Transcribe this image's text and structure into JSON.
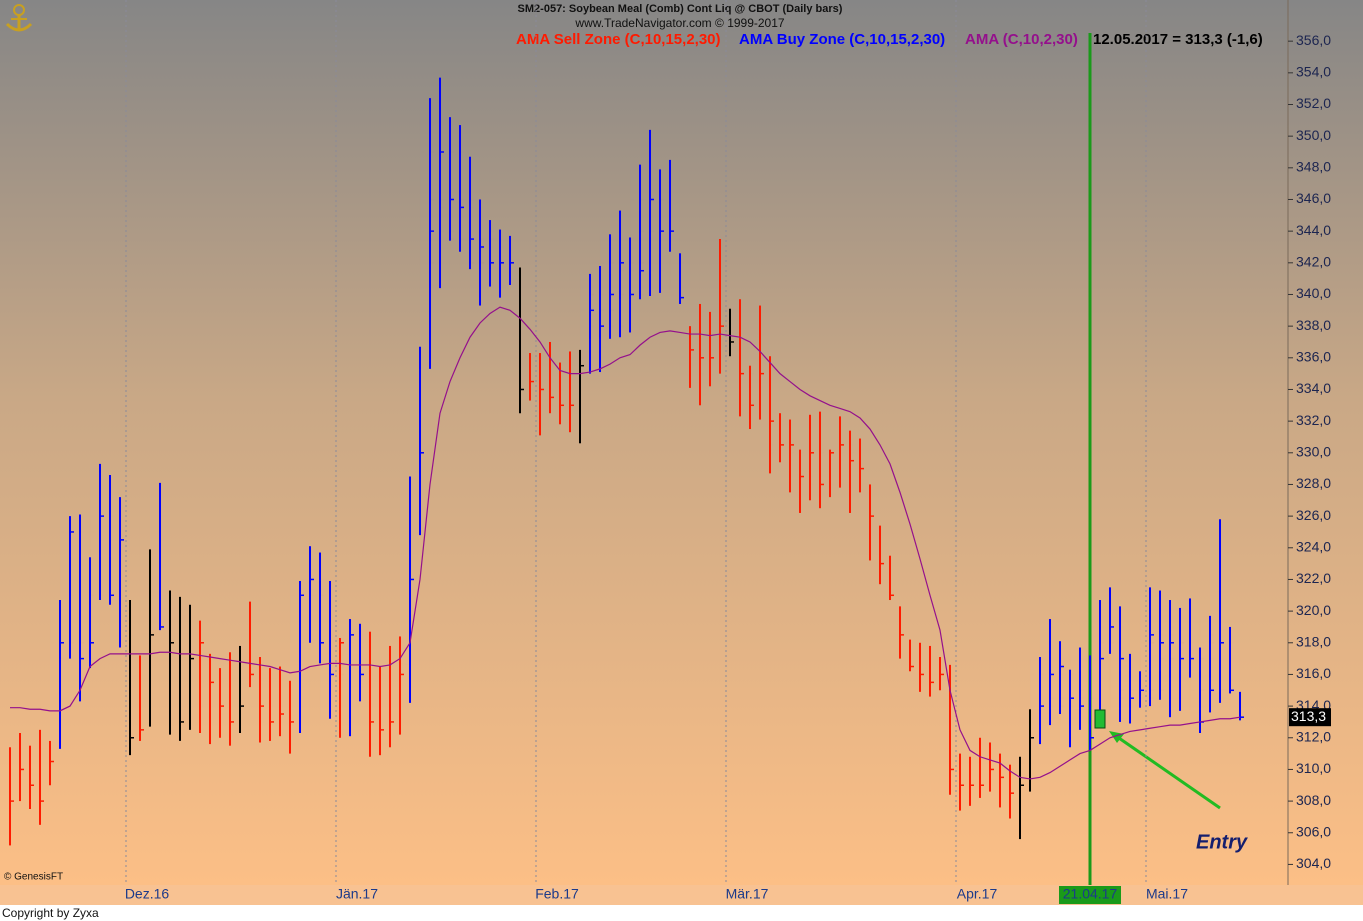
{
  "chart_data": {
    "type": "ohlc",
    "title": "SM2-057:  Soybean Meal (Comb) Cont Liq @ CBOT  (Daily bars)",
    "subtitle": "www.TradeNavigator.com © 1999-2017",
    "status": "12.05.2017 = 313,3 (-1,6)",
    "last_label": "313,3",
    "annotation": "Entry",
    "source_note": "© GenesisFT",
    "copyright": "Copyright by Zyxa",
    "series": [
      {
        "name": "AMA Sell Zone (C,10,15,2,30)",
        "color": "#ff1a00"
      },
      {
        "name": "AMA Buy Zone (C,10,15,2,30)",
        "color": "#0000ff"
      },
      {
        "name": "AMA (C,10,2,30)",
        "color": "#94108c",
        "values": [
          313.9,
          313.9,
          313.8,
          313.8,
          313.7,
          313.7,
          314,
          315,
          316.5,
          317,
          317.3,
          317.3,
          317.3,
          317.3,
          317.3,
          317.4,
          317.4,
          317.3,
          317.3,
          317.2,
          317.1,
          317,
          316.9,
          316.8,
          316.7,
          316.6,
          316.5,
          316.3,
          316.1,
          316.2,
          316.5,
          316.6,
          316.7,
          316.7,
          316.6,
          316.6,
          316.6,
          316.5,
          316.6,
          317,
          318,
          322,
          328,
          332.5,
          334.5,
          336,
          337.3,
          338.2,
          338.8,
          339.2,
          339,
          338.5,
          337.8,
          337,
          336,
          335.2,
          335,
          335,
          335.1,
          335.3,
          335.6,
          336,
          336.2,
          336.8,
          337.3,
          337.6,
          337.7,
          337.6,
          337.5,
          337.5,
          337.4,
          337.5,
          337.4,
          337.3,
          337,
          336.4,
          335.7,
          335,
          334.5,
          334,
          333.6,
          333.3,
          333,
          332.8,
          332.6,
          332.2,
          331.5,
          330.5,
          329.3,
          327.5,
          325.5,
          323.3,
          321,
          318.8,
          315,
          312.5,
          311.2,
          310.8,
          310.6,
          310.4,
          309.9,
          309.5,
          309.4,
          309.5,
          309.8,
          310.2,
          310.6,
          311,
          311.2,
          311.6,
          312,
          312.2,
          312.4,
          312.5,
          312.6,
          312.7,
          312.8,
          312.8,
          312.9,
          313,
          313.1,
          313.2,
          313.2,
          313.3
        ]
      }
    ],
    "categories": [
      null,
      null,
      null,
      null,
      null,
      null,
      null,
      null,
      null,
      null,
      null,
      null,
      "Dez.16",
      null,
      null,
      null,
      null,
      null,
      null,
      null,
      null,
      null,
      null,
      null,
      null,
      null,
      null,
      null,
      null,
      null,
      null,
      null,
      null,
      "Jän.17",
      null,
      null,
      null,
      null,
      null,
      null,
      null,
      null,
      null,
      null,
      null,
      null,
      null,
      null,
      null,
      null,
      null,
      null,
      null,
      "Feb.17",
      null,
      null,
      null,
      null,
      null,
      null,
      null,
      null,
      null,
      null,
      null,
      null,
      null,
      null,
      null,
      null,
      null,
      null,
      "Mär.17",
      null,
      null,
      null,
      null,
      null,
      null,
      null,
      null,
      null,
      null,
      null,
      null,
      null,
      null,
      null,
      null,
      null,
      null,
      null,
      null,
      null,
      null,
      "Apr.17",
      null,
      null,
      null,
      null,
      null,
      null,
      null,
      null,
      null,
      null,
      null,
      null,
      "21.04.17",
      null,
      null,
      null,
      null,
      null,
      "Mai.17",
      null,
      null,
      null,
      null,
      null,
      null,
      null,
      null,
      null
    ],
    "bars": {
      "high": [
        311.4,
        312.3,
        311.5,
        312.5,
        311.8,
        320.7,
        326,
        326.1,
        323.4,
        329.3,
        328.6,
        327.2,
        320.7,
        317.2,
        323.9,
        328.1,
        321.3,
        320.9,
        320.4,
        319.4,
        317.3,
        316.4,
        317.4,
        317.8,
        320.6,
        317.1,
        316.4,
        316.5,
        315.6,
        321.9,
        324.1,
        323.7,
        321.9,
        318.3,
        319.5,
        319.2,
        318.7,
        316.5,
        317.8,
        318.4,
        328.5,
        336.7,
        352.4,
        353.7,
        351.2,
        350.7,
        348.7,
        346,
        344.7,
        344.1,
        343.7,
        341.7,
        336.3,
        336.3,
        337,
        335.7,
        336.4,
        336.5,
        341.3,
        341.8,
        343.8,
        345.3,
        343.6,
        348.2,
        350.4,
        347.9,
        348.5,
        342.6,
        338,
        339.4,
        338.9,
        343.5,
        339.1,
        339.7,
        335.5,
        339.3,
        336.1,
        332.5,
        332.1,
        330.2,
        332.4,
        332.6,
        330.2,
        332.3,
        331.4,
        330.9,
        328,
        325.4,
        323.5,
        320.3,
        318.2,
        318,
        317.8,
        317.1,
        316.6,
        311,
        310.8,
        312,
        311.7,
        311,
        310.3,
        310.8,
        313.8,
        317.1,
        319.5,
        318.1,
        316.3,
        317.7,
        317.2,
        320.7,
        321.5,
        320.3,
        317.3,
        316.2,
        321.5,
        321.3,
        320.7,
        320.2,
        320.8,
        317.7,
        319.7,
        325.8,
        319,
        314.9
      ],
      "low": [
        305.2,
        308,
        307.5,
        306.5,
        309,
        311.3,
        317,
        314.3,
        316.4,
        320.7,
        320.4,
        317.7,
        310.9,
        311.8,
        312.7,
        318.8,
        312.2,
        311.8,
        312.5,
        312.3,
        311.6,
        312,
        311.5,
        312.3,
        315.2,
        311.7,
        311.8,
        312.1,
        311,
        312.3,
        318,
        316.7,
        313.2,
        312,
        312.1,
        314.3,
        310.8,
        310.9,
        311.4,
        312.2,
        314.2,
        324.8,
        335.3,
        340.4,
        343.4,
        342.7,
        341.6,
        339.3,
        340.5,
        339.8,
        340.6,
        332.5,
        333.3,
        331.1,
        332.5,
        331.8,
        331.3,
        330.6,
        335,
        335.1,
        337.2,
        337.3,
        337.6,
        339.7,
        339.9,
        340.1,
        342.7,
        339.4,
        334.1,
        333,
        334.2,
        335,
        336.1,
        332.3,
        331.5,
        332.1,
        328.7,
        329.4,
        327.5,
        326.2,
        327,
        326.5,
        327.2,
        327.8,
        326.2,
        327.5,
        323.2,
        321.7,
        320.7,
        317,
        316.2,
        314.9,
        314.6,
        315,
        308.4,
        307.4,
        307.7,
        308.2,
        308.6,
        307.6,
        306.9,
        305.6,
        308.6,
        311.6,
        312.8,
        313.5,
        311.4,
        312.5,
        311.2,
        313,
        317.3,
        313,
        312.9,
        313.9,
        314,
        314.4,
        313.3,
        313.7,
        315.8,
        312.3,
        313.6,
        314.2,
        314.8,
        313.1
      ],
      "close": [
        308,
        310,
        309,
        308,
        310.5,
        318,
        325,
        317,
        318,
        326,
        321,
        324.5,
        312,
        312.5,
        318.5,
        319,
        318,
        313,
        317,
        318,
        315.5,
        314,
        313,
        314,
        316,
        314,
        313,
        313.5,
        313,
        321,
        322,
        318,
        316,
        318,
        318.5,
        316,
        313,
        312.5,
        313,
        316,
        322,
        330,
        344,
        349,
        346,
        345.5,
        343.5,
        343,
        342,
        342,
        342,
        334,
        334.5,
        334,
        333.5,
        333,
        333,
        335.5,
        339,
        338,
        340,
        342,
        340,
        341.5,
        346,
        344,
        344,
        339.8,
        336.5,
        336,
        336,
        338,
        337,
        335,
        333,
        335,
        332,
        330.5,
        330.5,
        328.5,
        330,
        328,
        330,
        330.5,
        329.5,
        329,
        326,
        323,
        321,
        318.5,
        316.5,
        316,
        315.5,
        316,
        310,
        309,
        309,
        309,
        310,
        309.5,
        308.5,
        309,
        312,
        314,
        316,
        316.5,
        314.5,
        314,
        312,
        317,
        319,
        317,
        314.5,
        315,
        318.5,
        318,
        318,
        317,
        317,
        313,
        315,
        318,
        315,
        313.3
      ],
      "colors": [
        "#ff1a00",
        "#ff1a00",
        "#ff1a00",
        "#ff1a00",
        "#ff1a00",
        "#0000ff",
        "#0000ff",
        "#0000ff",
        "#0000ff",
        "#0000ff",
        "#0000ff",
        "#0000ff",
        "#000000",
        "#ff1a00",
        "#000000",
        "#0000ff",
        "#000000",
        "#000000",
        "#000000",
        "#ff1a00",
        "#ff1a00",
        "#ff1a00",
        "#ff1a00",
        "#000000",
        "#ff1a00",
        "#ff1a00",
        "#ff1a00",
        "#ff1a00",
        "#ff1a00",
        "#0000ff",
        "#0000ff",
        "#0000ff",
        "#0000ff",
        "#ff1a00",
        "#0000ff",
        "#0000ff",
        "#ff1a00",
        "#ff1a00",
        "#ff1a00",
        "#ff1a00",
        "#0000ff",
        "#0000ff",
        "#0000ff",
        "#0000ff",
        "#0000ff",
        "#0000ff",
        "#0000ff",
        "#0000ff",
        "#0000ff",
        "#0000ff",
        "#0000ff",
        "#000000",
        "#ff1a00",
        "#ff1a00",
        "#ff1a00",
        "#ff1a00",
        "#ff1a00",
        "#000000",
        "#0000ff",
        "#0000ff",
        "#0000ff",
        "#0000ff",
        "#0000ff",
        "#0000ff",
        "#0000ff",
        "#0000ff",
        "#0000ff",
        "#0000ff",
        "#ff1a00",
        "#ff1a00",
        "#ff1a00",
        "#ff1a00",
        "#000000",
        "#ff1a00",
        "#ff1a00",
        "#ff1a00",
        "#ff1a00",
        "#ff1a00",
        "#ff1a00",
        "#ff1a00",
        "#ff1a00",
        "#ff1a00",
        "#ff1a00",
        "#ff1a00",
        "#ff1a00",
        "#ff1a00",
        "#ff1a00",
        "#ff1a00",
        "#ff1a00",
        "#ff1a00",
        "#ff1a00",
        "#ff1a00",
        "#ff1a00",
        "#ff1a00",
        "#ff1a00",
        "#ff1a00",
        "#ff1a00",
        "#ff1a00",
        "#ff1a00",
        "#ff1a00",
        "#ff1a00",
        "#000000",
        "#000000",
        "#0000ff",
        "#0000ff",
        "#0000ff",
        "#0000ff",
        "#0000ff",
        "#0000ff",
        "#0000ff",
        "#0000ff",
        "#0000ff",
        "#0000ff",
        "#0000ff",
        "#0000ff",
        "#0000ff",
        "#0000ff",
        "#0000ff",
        "#0000ff",
        "#0000ff",
        "#0000ff",
        "#0000ff",
        "#0000ff",
        "#0000ff"
      ]
    },
    "ylim": [
      302.7,
      358.6
    ],
    "yticks": [
      {
        "value": 304,
        "label": "304,0"
      },
      {
        "value": 306,
        "label": "306,0"
      },
      {
        "value": 308,
        "label": "308,0"
      },
      {
        "value": 310,
        "label": "310,0"
      },
      {
        "value": 312,
        "label": "312,0"
      },
      {
        "value": 314,
        "label": "314,0"
      },
      {
        "value": 316,
        "label": "316,0"
      },
      {
        "value": 318,
        "label": "318,0"
      },
      {
        "value": 320,
        "label": "320,0"
      },
      {
        "value": 322,
        "label": "322,0"
      },
      {
        "value": 324,
        "label": "324,0"
      },
      {
        "value": 326,
        "label": "326,0"
      },
      {
        "value": 328,
        "label": "328,0"
      },
      {
        "value": 330,
        "label": "330,0"
      },
      {
        "value": 332,
        "label": "332,0"
      },
      {
        "value": 334,
        "label": "334,0"
      },
      {
        "value": 336,
        "label": "336,0"
      },
      {
        "value": 338,
        "label": "338,0"
      },
      {
        "value": 340,
        "label": "340,0"
      },
      {
        "value": 342,
        "label": "342,0"
      },
      {
        "value": 344,
        "label": "344,0"
      },
      {
        "value": 346,
        "label": "346,0"
      },
      {
        "value": 348,
        "label": "348,0"
      },
      {
        "value": 350,
        "label": "350,0"
      },
      {
        "value": 352,
        "label": "352,0"
      },
      {
        "value": 354,
        "label": "354,0"
      },
      {
        "value": 356,
        "label": "356,0"
      }
    ]
  }
}
